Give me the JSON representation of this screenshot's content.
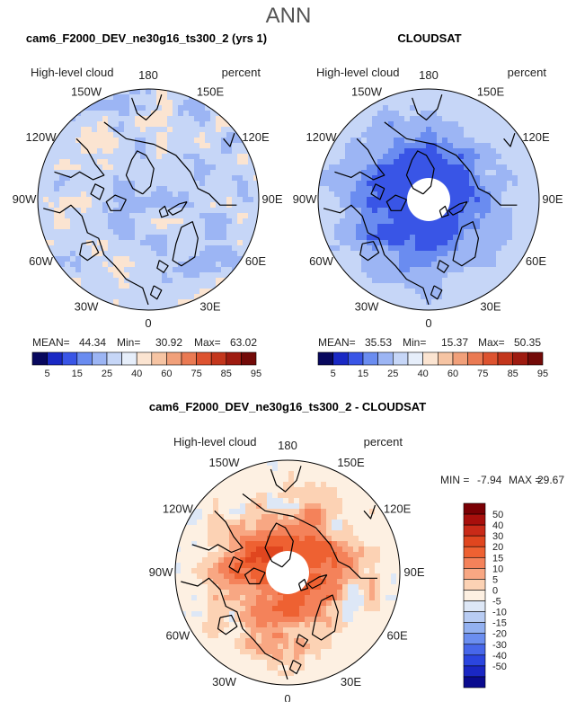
{
  "page": {
    "main_title": "ANN"
  },
  "chart_data": [
    {
      "type": "heatmap",
      "projection": "north-polar-stereographic",
      "title": "cam6_F2000_DEV_ne30g16_ts300_2 (yrs 1)",
      "variable": "High-level cloud",
      "units": "percent",
      "longitude_labels": [
        "180",
        "150E",
        "120E",
        "90E",
        "60E",
        "30E",
        "0",
        "30W",
        "60W",
        "90W",
        "120W",
        "150W"
      ],
      "stats": [
        {
          "label": "MEAN=",
          "value": "44.34"
        },
        {
          "label": "Min=",
          "value": "30.92"
        },
        {
          "label": "Max=",
          "value": "63.02"
        }
      ],
      "colorbar": {
        "orientation": "horizontal",
        "tick_labels": [
          "5",
          "15",
          "25",
          "40",
          "60",
          "75",
          "85",
          "95"
        ],
        "colors": [
          "#08085e",
          "#1a29c4",
          "#3955e6",
          "#6a8cf0",
          "#9cb5f4",
          "#c6d6f7",
          "#e6eefa",
          "#fbe4d1",
          "#f6c4a3",
          "#f1a07a",
          "#ea7a53",
          "#dd5330",
          "#c3361c",
          "#9e1b10",
          "#730a08"
        ]
      },
      "field": {
        "mean": 44.34,
        "min": 30.92,
        "max": 63.02,
        "polar_gap": false
      }
    },
    {
      "type": "heatmap",
      "projection": "north-polar-stereographic",
      "title": "CLOUDSAT",
      "variable": "High-level cloud",
      "units": "percent",
      "longitude_labels": [
        "180",
        "150E",
        "120E",
        "90E",
        "60E",
        "30E",
        "0",
        "30W",
        "60W",
        "90W",
        "120W",
        "150W"
      ],
      "stats": [
        {
          "label": "MEAN=",
          "value": "35.53"
        },
        {
          "label": "Min=",
          "value": "15.37"
        },
        {
          "label": "Max=",
          "value": "50.35"
        }
      ],
      "colorbar": {
        "orientation": "horizontal",
        "tick_labels": [
          "5",
          "15",
          "25",
          "40",
          "60",
          "75",
          "85",
          "95"
        ],
        "colors": [
          "#08085e",
          "#1a29c4",
          "#3955e6",
          "#6a8cf0",
          "#9cb5f4",
          "#c6d6f7",
          "#e6eefa",
          "#fbe4d1",
          "#f6c4a3",
          "#f1a07a",
          "#ea7a53",
          "#dd5330",
          "#c3361c",
          "#9e1b10",
          "#730a08"
        ]
      },
      "field": {
        "mean": 35.53,
        "min": 15.37,
        "max": 50.35,
        "polar_gap": true
      }
    },
    {
      "type": "heatmap",
      "projection": "north-polar-stereographic",
      "title": "cam6_F2000_DEV_ne30g16_ts300_2 - CLOUDSAT",
      "variable": "High-level cloud",
      "units": "percent",
      "longitude_labels": [
        "180",
        "150E",
        "120E",
        "90E",
        "60E",
        "30E",
        "0",
        "30W",
        "60W",
        "90W",
        "120W",
        "150W"
      ],
      "stats": [
        {
          "label": "MIN =",
          "value": "-7.94"
        },
        {
          "label": "MAX =",
          "value": "29.67"
        }
      ],
      "colorbar": {
        "orientation": "vertical",
        "tick_labels": [
          "50",
          "40",
          "30",
          "20",
          "15",
          "10",
          "5",
          "0",
          "-5",
          "-10",
          "-15",
          "-20",
          "-30",
          "-40",
          "-50"
        ],
        "colors": [
          "#7a0004",
          "#a80f0c",
          "#c92a18",
          "#e0461f",
          "#ee6132",
          "#f4825a",
          "#f8a783",
          "#fcd2b4",
          "#fdf0e2",
          "#dde7f6",
          "#b8ccf3",
          "#93b1f1",
          "#6b8ef0",
          "#4767ea",
          "#2b45df",
          "#1a27c4",
          "#0a0b8f"
        ]
      },
      "field": {
        "min": -7.94,
        "max": 29.67,
        "polar_gap": true
      }
    }
  ]
}
